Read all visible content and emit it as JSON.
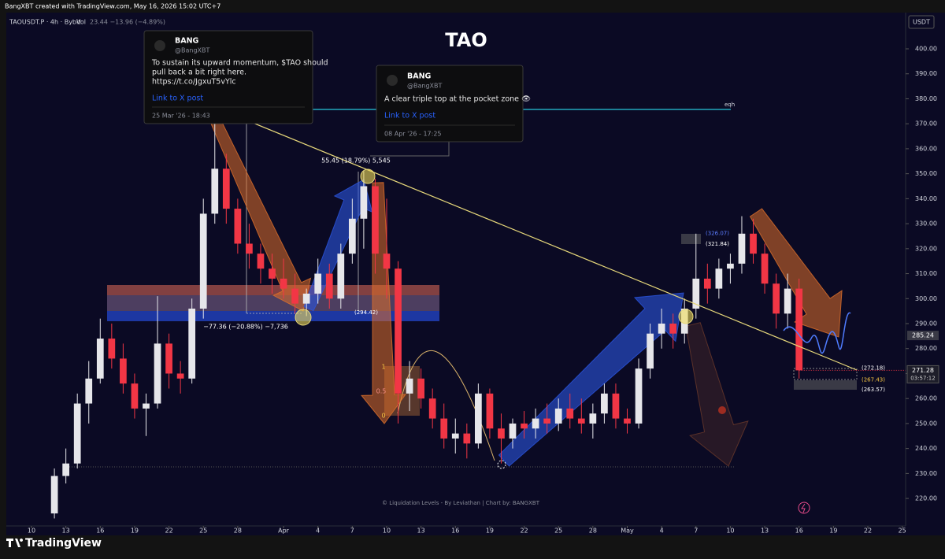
{
  "header": {
    "credit": "BangXBT created with TradingView.com, May 16, 2026 15:02 UTC+7",
    "symbol": "TAOUSDT.P · 4h · Bybit",
    "volume_label": "Vol",
    "volume_values": "23.44  −13.96 (−4.89%)",
    "currency": "USDT"
  },
  "chart_data": {
    "type": "candlestick",
    "title": "TAO",
    "x": [
      11,
      12,
      13,
      14,
      15,
      16,
      17,
      18,
      19,
      20,
      21,
      22,
      23,
      24,
      25,
      26,
      27,
      28,
      29,
      30,
      31,
      32,
      33,
      34,
      35,
      36,
      37,
      38,
      39,
      40,
      41,
      42,
      43,
      44,
      45,
      46,
      47,
      48,
      49,
      50,
      51,
      52,
      53,
      54,
      55,
      56,
      57,
      58,
      59,
      60,
      61,
      62,
      63,
      64,
      65,
      66,
      67,
      68,
      69,
      70,
      71,
      72,
      73,
      74,
      75,
      76
    ],
    "open": [
      214,
      229,
      234,
      258,
      268,
      284,
      276,
      266,
      256,
      258,
      282,
      270,
      268,
      296,
      334,
      352,
      336,
      322,
      318,
      312,
      308,
      304,
      298,
      302,
      310,
      300,
      318,
      332,
      345,
      318,
      312,
      262,
      268,
      260,
      252,
      244,
      246,
      242,
      262,
      248,
      244,
      250,
      248,
      252,
      250,
      256,
      252,
      250,
      254,
      262,
      252,
      250,
      272,
      286,
      290,
      286,
      296,
      308,
      304,
      312,
      314,
      326,
      318,
      306,
      294,
      304
    ],
    "high": [
      232,
      240,
      262,
      275,
      292,
      290,
      282,
      270,
      262,
      301,
      286,
      275,
      300,
      340,
      372,
      358,
      340,
      330,
      322,
      318,
      316,
      310,
      304,
      316,
      314,
      322,
      340,
      351,
      348,
      340,
      315,
      275,
      272,
      264,
      258,
      252,
      250,
      266,
      264,
      254,
      252,
      255,
      256,
      258,
      260,
      262,
      260,
      258,
      266,
      266,
      256,
      276,
      290,
      296,
      294,
      300,
      326,
      314,
      316,
      318,
      333,
      332,
      322,
      310,
      310,
      308
    ],
    "low": [
      212,
      226,
      232,
      250,
      266,
      272,
      262,
      252,
      245,
      256,
      264,
      262,
      266,
      292,
      330,
      330,
      318,
      312,
      306,
      302,
      300,
      294,
      293,
      298,
      296,
      296,
      314,
      320,
      310,
      300,
      250,
      255,
      256,
      248,
      240,
      238,
      236,
      240,
      244,
      234,
      240,
      244,
      244,
      246,
      247,
      248,
      246,
      244,
      250,
      248,
      246,
      248,
      268,
      280,
      280,
      282,
      292,
      298,
      300,
      306,
      310,
      314,
      302,
      288,
      288,
      268
    ],
    "close": [
      229,
      234,
      258,
      268,
      284,
      276,
      266,
      256,
      258,
      282,
      270,
      268,
      296,
      334,
      352,
      336,
      322,
      318,
      312,
      308,
      304,
      298,
      302,
      310,
      300,
      318,
      332,
      345,
      318,
      312,
      262,
      268,
      260,
      252,
      244,
      246,
      242,
      262,
      248,
      244,
      250,
      248,
      252,
      250,
      256,
      252,
      250,
      254,
      262,
      252,
      250,
      272,
      286,
      290,
      286,
      296,
      308,
      304,
      312,
      314,
      326,
      318,
      306,
      294,
      304,
      271.28
    ],
    "up_color": "#e6e6ea",
    "down_color": "#f23645",
    "xlim": [
      6.8,
      85.3
    ],
    "xticks": [
      {
        "value": 9,
        "label": "10"
      },
      {
        "value": 12,
        "label": "13"
      },
      {
        "value": 15,
        "label": "16"
      },
      {
        "value": 18,
        "label": "19"
      },
      {
        "value": 21,
        "label": "22"
      },
      {
        "value": 24,
        "label": "25"
      },
      {
        "value": 27,
        "label": "28"
      },
      {
        "value": 31,
        "label": "Apr"
      },
      {
        "value": 34,
        "label": "4"
      },
      {
        "value": 37,
        "label": "7"
      },
      {
        "value": 40,
        "label": "10"
      },
      {
        "value": 43,
        "label": "13"
      },
      {
        "value": 46,
        "label": "16"
      },
      {
        "value": 49,
        "label": "19"
      },
      {
        "value": 52,
        "label": "22"
      },
      {
        "value": 55,
        "label": "25"
      },
      {
        "value": 58,
        "label": "28"
      },
      {
        "value": 61,
        "label": "May"
      },
      {
        "value": 64,
        "label": "4"
      },
      {
        "value": 67,
        "label": "7"
      },
      {
        "value": 70,
        "label": "10"
      },
      {
        "value": 73,
        "label": "13"
      },
      {
        "value": 76,
        "label": "16"
      },
      {
        "value": 79,
        "label": "19"
      },
      {
        "value": 82,
        "label": "22"
      },
      {
        "value": 85,
        "label": "25"
      }
    ],
    "ylim": [
      209,
      414.5
    ],
    "yticks": [
      {
        "value": 220,
        "label": "220.00"
      },
      {
        "value": 230,
        "label": "230.00"
      },
      {
        "value": 240,
        "label": "240.00"
      },
      {
        "value": 250,
        "label": "250.00"
      },
      {
        "value": 260,
        "label": "260.00"
      },
      {
        "value": 270,
        "label": "270.00"
      },
      {
        "value": 280,
        "label": "280.00"
      },
      {
        "value": 290,
        "label": "290.00"
      },
      {
        "value": 300,
        "label": "300.00"
      },
      {
        "value": 310,
        "label": "310.00"
      },
      {
        "value": 320,
        "label": "320.00"
      },
      {
        "value": 330,
        "label": "330.00"
      },
      {
        "value": 340,
        "label": "340.00"
      },
      {
        "value": 350,
        "label": "350.00"
      },
      {
        "value": 360,
        "label": "360.00"
      },
      {
        "value": 370,
        "label": "370.00"
      },
      {
        "value": 380,
        "label": "380.00"
      },
      {
        "value": 390,
        "label": "390.00"
      },
      {
        "value": 400,
        "label": "400.00"
      }
    ],
    "grid": false,
    "marker_price": 285.24,
    "last_price": 271.28,
    "countdown": "03:57:12",
    "level_labels": [
      {
        "value": 294.42,
        "label": "(294.42)"
      },
      {
        "value": 326.07,
        "label": "(326.07)"
      },
      {
        "value": 321.84,
        "label": "(321.84)"
      },
      {
        "value": 272.18,
        "label": "(272.18)"
      },
      {
        "value": 267.43,
        "label": "(267.43)"
      },
      {
        "value": 263.57,
        "label": "(263.57)"
      }
    ],
    "annotations": {
      "eqh": "eqh",
      "measure_up": "55.45 (18.79%) 5,545",
      "measure_down": "−77.36 (−20.88%) −7,736",
      "fib": [
        "1",
        "0.5",
        "0"
      ]
    }
  },
  "cards": [
    {
      "name": "BANG",
      "handle": "@BangXBT",
      "lines": [
        "To sustain its upward momentum, $TAO should",
        "pull back a bit right here.",
        "https://t.co/JgxuT5vYlc"
      ],
      "link": "Link to X post",
      "date": "25 Mar '26 - 18:43"
    },
    {
      "name": "BANG",
      "handle": "@BangXBT",
      "lines": [
        "A clear triple top at the pocket zone 👁"
      ],
      "link": "Link to X post",
      "date": "08 Apr '26 - 17:25"
    }
  ],
  "footer": {
    "watermark": "© Liquidation Levels - By Leviathan | Chart by: BANGXBT",
    "brand": "TradingView"
  }
}
